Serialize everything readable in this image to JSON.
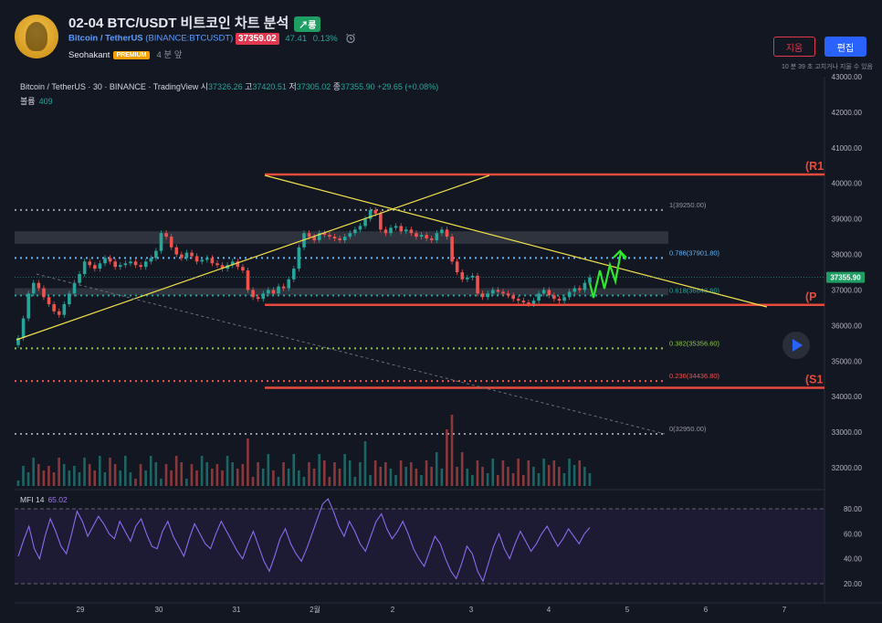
{
  "header": {
    "title": "02-04 BTC/USDT 비트코인 차트 분석",
    "direction_badge": "↗롱",
    "pair": "Bitcoin / TetherUS",
    "exchange": "(BINANCE:BTCUSDT)",
    "price": "37359.02",
    "change_abs": "47.41",
    "change_pct": "0.13%",
    "author": "Seohakant",
    "author_badge": "PREMIUM",
    "time_ago": "4 분 앞",
    "delete_label": "지움",
    "edit_label": "편집",
    "edit_note": "10 분 39 초 고치거나 지울 수 있음"
  },
  "legend": {
    "symbol": "Bitcoin / TetherUS · 30 · BINANCE · TradingView",
    "open_label": "시",
    "open": "37326.26",
    "high_label": "고",
    "high": "37420.51",
    "low_label": "저",
    "low": "37305.02",
    "close_label": "종",
    "close": "37355.90",
    "change": "+29.65 (+0.08%)",
    "volume_label": "볼륨",
    "volume": "409"
  },
  "mfi": {
    "label": "MFI 14",
    "value": "65.02"
  },
  "colors": {
    "background": "#131722",
    "up": "#26a69a",
    "down": "#ef5350",
    "level_red": "#e84a3c",
    "trendline": "#f2e14c",
    "projection": "#2ee82e",
    "mfi_line": "#8b6cf0",
    "price_tag": "#1e9e63"
  },
  "chart_data": {
    "type": "candlestick",
    "title": "",
    "y_range": [
      31600,
      43000
    ],
    "y_ticks": [
      "43000.00",
      "42000.00",
      "41000.00",
      "40000.00",
      "39000.00",
      "38000.00",
      "37000.00",
      "36000.00",
      "35000.00",
      "34000.00",
      "33000.00",
      "32000.00"
    ],
    "x_ticks": [
      "29",
      "30",
      "31",
      "2월",
      "2",
      "3",
      "4",
      "5",
      "6",
      "7"
    ],
    "last_price_tag": "37355.90",
    "close_series": [
      35650,
      36200,
      36900,
      37200,
      37050,
      36800,
      36600,
      36400,
      36300,
      36600,
      36900,
      37200,
      37450,
      37800,
      37700,
      37600,
      37750,
      37900,
      37800,
      37650,
      37700,
      37750,
      37800,
      37700,
      37650,
      37800,
      37900,
      38100,
      38600,
      38500,
      38200,
      38000,
      37900,
      38050,
      37950,
      37800,
      37850,
      37900,
      37750,
      37700,
      37600,
      37700,
      37800,
      37650,
      37550,
      37000,
      36800,
      36750,
      36900,
      37000,
      36900,
      37100,
      37050,
      37300,
      37600,
      38200,
      38600,
      38500,
      38400,
      38600,
      38550,
      38500,
      38450,
      38400,
      38500,
      38600,
      38700,
      38800,
      39000,
      39250,
      39150,
      38700,
      38600,
      38750,
      38800,
      38650,
      38700,
      38600,
      38500,
      38550,
      38450,
      38400,
      38600,
      38700,
      38500,
      37800,
      37500,
      37300,
      37350,
      37400,
      36900,
      36800,
      36900,
      37000,
      36950,
      36900,
      36850,
      36750,
      36700,
      36650,
      36600,
      36700,
      36900,
      37000,
      36850,
      36750,
      36700,
      36800,
      36950,
      37050,
      37000,
      37200,
      37355
    ],
    "fib_levels": [
      {
        "label": "1(39250.00)",
        "value": 39250,
        "color": "#9598a1"
      },
      {
        "label": "0.786(37901.80)",
        "value": 37901.8,
        "color": "#64b5f6"
      },
      {
        "label": "0.618(36843.60)",
        "value": 36843.6,
        "color": "#26a69a"
      },
      {
        "label": "0.382(35356.60)",
        "value": 35356.6,
        "color": "#8bc34a"
      },
      {
        "label": "0.236(34436.80)",
        "value": 34436.8,
        "color": "#ef5350"
      },
      {
        "label": "0(32950.00)",
        "value": 32950,
        "color": "#9598a1"
      }
    ],
    "horizontal_levels": [
      {
        "label": "(R1",
        "value": 40250
      },
      {
        "label": "(P",
        "value": 36580
      },
      {
        "label": "(S1",
        "value": 34250
      }
    ],
    "zones": [
      {
        "from": 38300,
        "to": 38650
      },
      {
        "from": 36850,
        "to": 37050
      }
    ],
    "mfi_ticks": [
      "80.00",
      "60.00",
      "40.00",
      "20.00"
    ],
    "mfi_series": [
      42,
      55,
      66,
      48,
      40,
      58,
      72,
      62,
      50,
      44,
      60,
      78,
      70,
      58,
      66,
      74,
      68,
      60,
      56,
      70,
      62,
      54,
      66,
      72,
      60,
      50,
      48,
      62,
      70,
      58,
      50,
      42,
      56,
      68,
      60,
      52,
      48,
      60,
      70,
      62,
      54,
      46,
      40,
      52,
      62,
      50,
      38,
      30,
      42,
      56,
      64,
      52,
      44,
      38,
      48,
      60,
      72,
      84,
      88,
      78,
      66,
      58,
      70,
      62,
      52,
      46,
      58,
      70,
      76,
      64,
      56,
      62,
      70,
      60,
      48,
      40,
      34,
      46,
      58,
      52,
      40,
      30,
      24,
      36,
      50,
      44,
      30,
      22,
      36,
      50,
      60,
      48,
      40,
      52,
      62,
      54,
      46,
      52,
      60,
      66,
      58,
      50,
      56,
      64,
      58,
      52,
      60,
      65
    ]
  }
}
